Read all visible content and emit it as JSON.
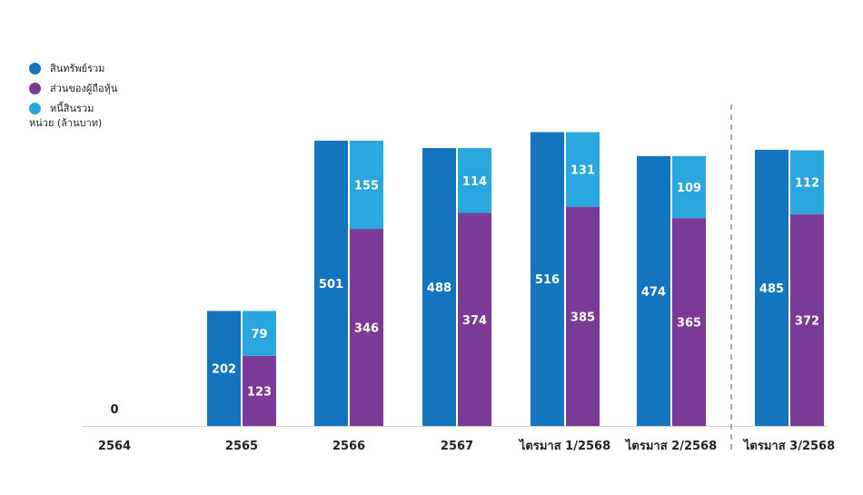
{
  "chart_data": {
    "type": "bar",
    "unit": "หน่วย (ล้านบาท)",
    "categories": [
      "2564",
      "2565",
      "2566",
      "2567",
      "ไตรมาส 1/2568",
      "ไตรมาส 2/2568",
      "ไตรมาส 3/2568"
    ],
    "series": [
      {
        "name": "สินทรัพย์รวม",
        "color": "#1474bd",
        "values": [
          0,
          202,
          501,
          488,
          516,
          474,
          485
        ]
      },
      {
        "name": "ส่วนของผู้ถือหุ้น",
        "color": "#7b3a96",
        "values": [
          0,
          123,
          346,
          374,
          385,
          365,
          372
        ]
      },
      {
        "name": "หนี้สินรวม",
        "color": "#2aa7df",
        "values": [
          0,
          79,
          155,
          114,
          131,
          109,
          112
        ]
      }
    ],
    "stacked_series": [
      "ส่วนของผู้ถือหุ้น",
      "หนี้สินรวม"
    ],
    "separator_before_category": "ไตรมาส 3/2568",
    "legend_position": "top-left",
    "grid": false
  }
}
